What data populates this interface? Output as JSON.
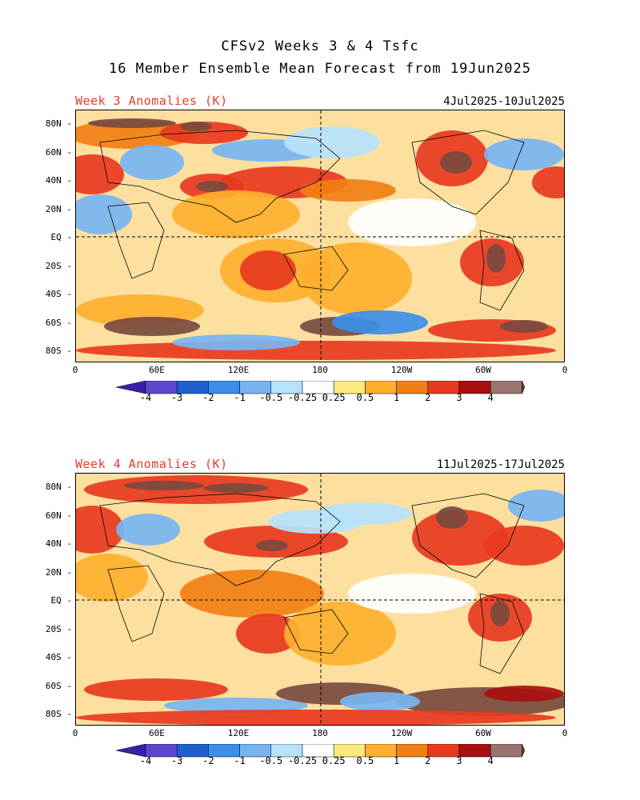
{
  "header": {
    "line1": "CFSv2 Weeks 3 & 4 Tsfc",
    "line2": "16 Member Ensemble Mean Forecast from 19Jun2025"
  },
  "panels": [
    {
      "title": "Week 3 Anomalies (K)",
      "date_range": "4Jul2025-10Jul2025"
    },
    {
      "title": "Week 4 Anomalies (K)",
      "date_range": "11Jul2025-17Jul2025"
    }
  ],
  "lat_labels": [
    "80N",
    "60N",
    "40N",
    "20N",
    "EQ",
    "20S",
    "40S",
    "60S",
    "80S"
  ],
  "lon_labels": [
    "0",
    "60E",
    "120E",
    "180",
    "120W",
    "60W",
    "0"
  ],
  "colorbar": {
    "labels": [
      "-4",
      "-3",
      "-2",
      "-1",
      "-0.5",
      "-0.25",
      "0.25",
      "0.5",
      "1",
      "2",
      "3",
      "4"
    ],
    "colors": [
      "#3c1fa8",
      "#5b48cf",
      "#1f5fd1",
      "#3c8ee9",
      "#78b4f2",
      "#b6e3fb",
      "#ffffff",
      "#fde97f",
      "#fdb02e",
      "#f27f14",
      "#e8391f",
      "#a80f0f",
      "#9b7470",
      "#6b3f33"
    ]
  },
  "map_colors": {
    "background": "#fde0a0",
    "warm_light": "#fdb02e",
    "warm_mid": "#f27f14",
    "warm_strong": "#e8391f",
    "warm_dark": "#a80f0f",
    "warm_brown": "#7a4a3e",
    "cool_light": "#b6e3fb",
    "cool_mid": "#78b4f2",
    "cool_strong": "#3c8ee9",
    "neutral": "#ffffff"
  }
}
